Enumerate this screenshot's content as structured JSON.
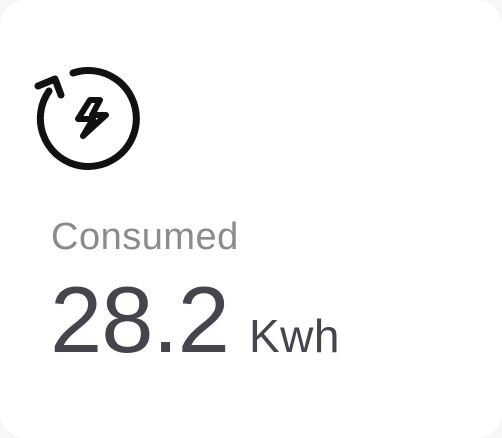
{
  "stat_card": {
    "icon": "energy-refresh-icon",
    "label": "Consumed",
    "value": "28.2",
    "unit": "Kwh"
  },
  "colors": {
    "background": "#ffffff",
    "icon_stroke": "#111111",
    "label_text": "#8a8a8f",
    "value_text": "#45464d"
  }
}
